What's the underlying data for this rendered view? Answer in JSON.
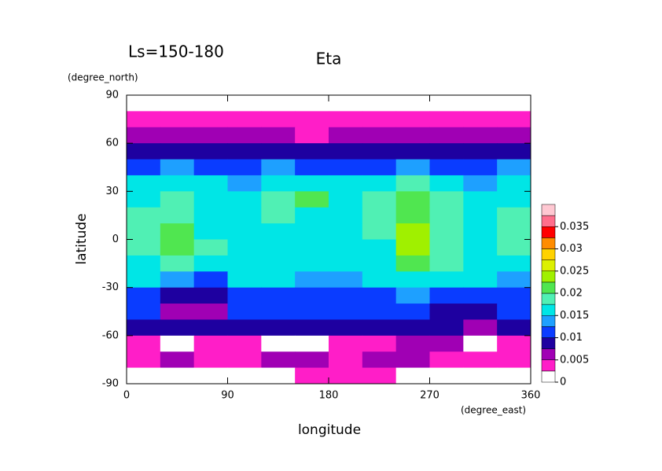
{
  "chart_data": {
    "type": "heatmap",
    "title": "Eta",
    "subtitle": "Ls=150-180",
    "x_label": "longitude",
    "y_label": "latitude",
    "x_unit": "(degree_east)",
    "y_unit": "(degree_north)",
    "xlim": [
      0,
      360
    ],
    "ylim": [
      -90,
      90
    ],
    "xticks": [
      0,
      90,
      180,
      270,
      360
    ],
    "yticks": [
      -90,
      -60,
      -30,
      0,
      30,
      60,
      90
    ],
    "lon": [
      15,
      45,
      75,
      105,
      135,
      165,
      195,
      225,
      255,
      285,
      315,
      345
    ],
    "lat": [
      85,
      75,
      65,
      55,
      45,
      35,
      25,
      15,
      5,
      -5,
      -15,
      -25,
      -35,
      -45,
      -55,
      -65,
      -75,
      -85
    ],
    "values": [
      [
        0,
        0,
        0,
        0,
        0,
        0,
        0,
        0,
        0,
        0,
        0,
        0
      ],
      [
        0.003,
        0.003,
        0.003,
        0.003,
        0.003,
        0.003,
        0.003,
        0.003,
        0.003,
        0.003,
        0.003,
        0.003
      ],
      [
        0.005,
        0.006,
        0.005,
        0.005,
        0.005,
        0.004,
        0.005,
        0.006,
        0.006,
        0.007,
        0.006,
        0.005
      ],
      [
        0.009,
        0.009,
        0.009,
        0.009,
        0.009,
        0.009,
        0.009,
        0.009,
        0.009,
        0.009,
        0.008,
        0.009
      ],
      [
        0.012,
        0.013,
        0.012,
        0.012,
        0.013,
        0.012,
        0.012,
        0.012,
        0.014,
        0.012,
        0.011,
        0.013
      ],
      [
        0.015,
        0.016,
        0.015,
        0.014,
        0.015,
        0.015,
        0.015,
        0.016,
        0.019,
        0.017,
        0.014,
        0.016
      ],
      [
        0.017,
        0.018,
        0.016,
        0.016,
        0.019,
        0.021,
        0.017,
        0.018,
        0.021,
        0.019,
        0.016,
        0.017
      ],
      [
        0.018,
        0.019,
        0.016,
        0.016,
        0.018,
        0.017,
        0.017,
        0.018,
        0.022,
        0.018,
        0.017,
        0.018
      ],
      [
        0.018,
        0.02,
        0.017,
        0.017,
        0.017,
        0.016,
        0.017,
        0.019,
        0.023,
        0.019,
        0.017,
        0.018
      ],
      [
        0.019,
        0.02,
        0.018,
        0.016,
        0.016,
        0.017,
        0.016,
        0.017,
        0.024,
        0.019,
        0.016,
        0.018
      ],
      [
        0.017,
        0.018,
        0.017,
        0.016,
        0.016,
        0.017,
        0.016,
        0.016,
        0.02,
        0.018,
        0.016,
        0.016
      ],
      [
        0.015,
        0.013,
        0.012,
        0.015,
        0.015,
        0.014,
        0.014,
        0.015,
        0.016,
        0.016,
        0.015,
        0.014
      ],
      [
        0.012,
        0.008,
        0.008,
        0.011,
        0.012,
        0.012,
        0.011,
        0.012,
        0.013,
        0.012,
        0.011,
        0.011
      ],
      [
        0.01,
        0.007,
        0.006,
        0.01,
        0.011,
        0.01,
        0.01,
        0.01,
        0.01,
        0.009,
        0.008,
        0.01
      ],
      [
        0.008,
        0.008,
        0.008,
        0.008,
        0.008,
        0.008,
        0.008,
        0.008,
        0.008,
        0.008,
        0.007,
        0.008
      ],
      [
        0.004,
        0.002,
        0.003,
        0.004,
        0.001,
        0.001,
        0.004,
        0.003,
        0.005,
        0.006,
        0.002,
        0.004
      ],
      [
        0.004,
        0.005,
        0.004,
        0.004,
        0.005,
        0.005,
        0.004,
        0.005,
        0.005,
        0.004,
        0.004,
        0.004
      ],
      [
        0,
        0,
        0,
        0,
        0,
        0.003,
        0.003,
        0.003,
        0,
        0,
        0,
        0
      ]
    ],
    "levels": [
      0,
      0.0025,
      0.005,
      0.0075,
      0.01,
      0.0125,
      0.015,
      0.0175,
      0.02,
      0.0225,
      0.025,
      0.0275,
      0.03,
      0.0325,
      0.035,
      0.0375,
      0.04
    ],
    "colors": [
      "#ffffff",
      "#ff1ec8",
      "#a000b4",
      "#1e00a0",
      "#0a3cff",
      "#1ea0ff",
      "#00e6e6",
      "#50f0b4",
      "#50e650",
      "#a0f000",
      "#dcf000",
      "#ffd200",
      "#ff8c00",
      "#ff0000",
      "#ff6e8c",
      "#ffc8d2"
    ],
    "cbar_ticks": [
      0,
      0.005,
      0.01,
      0.015,
      0.02,
      0.025,
      0.03,
      0.035
    ]
  }
}
